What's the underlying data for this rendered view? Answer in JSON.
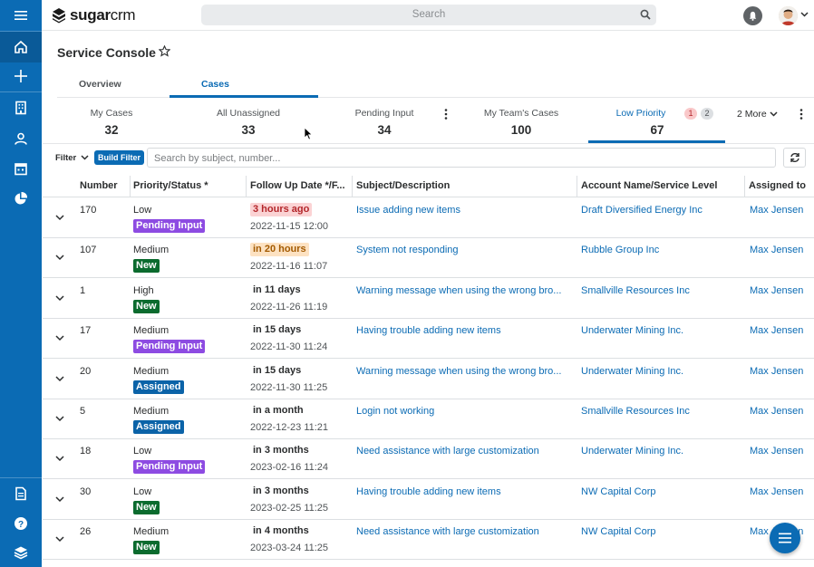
{
  "app": {
    "logo_name": "sugar",
    "logo_suffix": "crm",
    "search_placeholder": "Search"
  },
  "page": {
    "title": "Service Console"
  },
  "tabs": [
    {
      "label": "Overview",
      "active": false
    },
    {
      "label": "Cases",
      "active": true
    }
  ],
  "dashlet_tabs": [
    {
      "label": "My Cases",
      "count": "32"
    },
    {
      "label": "All Unassigned",
      "count": "33"
    },
    {
      "label": "Pending Input",
      "count": "34"
    },
    {
      "label": "My Team's Cases",
      "count": "100"
    },
    {
      "label": "Low Priority",
      "count": "67",
      "active": true,
      "badge_red": "1",
      "badge_gray": "2"
    }
  ],
  "more_label": "2 More",
  "filter": {
    "label": "Filter",
    "build_label": "Build Filter",
    "search_placeholder": "Search by subject, number..."
  },
  "columns": [
    "Number",
    "Priority/Status *",
    "Follow Up Date */F...",
    "Subject/Description",
    "Account Name/Service Level",
    "Assigned to"
  ],
  "rows": [
    {
      "number": "170",
      "priority": "Low",
      "status": "Pending Input",
      "status_color": "#8d4be2",
      "follow_up": "3 hours ago",
      "follow_up_style": "red",
      "date": "2022-11-15 12:00",
      "subject": "Issue adding new items",
      "account": "Draft Diversified Energy Inc",
      "assigned": "Max Jensen"
    },
    {
      "number": "107",
      "priority": "Medium",
      "status": "New",
      "status_color": "#0b6b2e",
      "follow_up": "in 20 hours",
      "follow_up_style": "orange",
      "date": "2022-11-16 11:07",
      "subject": "System not responding",
      "account": "Rubble Group Inc",
      "assigned": "Max Jensen"
    },
    {
      "number": "1",
      "priority": "High",
      "status": "New",
      "status_color": "#0b6b2e",
      "follow_up": "in 11 days",
      "follow_up_style": "plain",
      "date": "2022-11-26 11:19",
      "subject": "Warning message when using the wrong bro...",
      "account": "Smallville Resources Inc",
      "assigned": "Max Jensen"
    },
    {
      "number": "17",
      "priority": "Medium",
      "status": "Pending Input",
      "status_color": "#8d4be2",
      "follow_up": "in 15 days",
      "follow_up_style": "plain",
      "date": "2022-11-30 11:24",
      "subject": "Having trouble adding new items",
      "account": "Underwater Mining Inc.",
      "assigned": "Max Jensen"
    },
    {
      "number": "20",
      "priority": "Medium",
      "status": "Assigned",
      "status_color": "#0b63a8",
      "follow_up": "in 15 days",
      "follow_up_style": "plain",
      "date": "2022-11-30 11:25",
      "subject": "Warning message when using the wrong bro...",
      "account": "Underwater Mining Inc.",
      "assigned": "Max Jensen"
    },
    {
      "number": "5",
      "priority": "Medium",
      "status": "Assigned",
      "status_color": "#0b63a8",
      "follow_up": "in a month",
      "follow_up_style": "plain",
      "date": "2022-12-23 11:21",
      "subject": "Login not working",
      "account": "Smallville Resources Inc",
      "assigned": "Max Jensen"
    },
    {
      "number": "18",
      "priority": "Low",
      "status": "Pending Input",
      "status_color": "#8d4be2",
      "follow_up": "in 3 months",
      "follow_up_style": "plain",
      "date": "2023-02-16 11:24",
      "subject": "Need assistance with large customization",
      "account": "Underwater Mining Inc.",
      "assigned": "Max Jensen"
    },
    {
      "number": "30",
      "priority": "Low",
      "status": "New",
      "status_color": "#0b6b2e",
      "follow_up": "in 3 months",
      "follow_up_style": "plain",
      "date": "2023-02-25 11:25",
      "subject": "Having trouble adding new items",
      "account": "NW Capital Corp",
      "assigned": "Max Jensen"
    },
    {
      "number": "26",
      "priority": "Medium",
      "status": "New",
      "status_color": "#0b6b2e",
      "follow_up": "in 4 months",
      "follow_up_style": "plain",
      "date": "2023-03-24 11:25",
      "subject": "Need assistance with large customization",
      "account": "NW Capital Corp",
      "assigned": "Max Jensen"
    }
  ],
  "icons": {
    "sidebar_top": [
      "menu-icon",
      "home-icon",
      "plus-icon",
      "building-icon",
      "contact-icon",
      "calendar-icon",
      "pie-chart-icon"
    ],
    "sidebar_bottom": [
      "document-icon",
      "help-icon",
      "layers-icon"
    ]
  },
  "colors": {
    "accent": "#0b6bb4",
    "sidebar": "#0b6bb4"
  }
}
